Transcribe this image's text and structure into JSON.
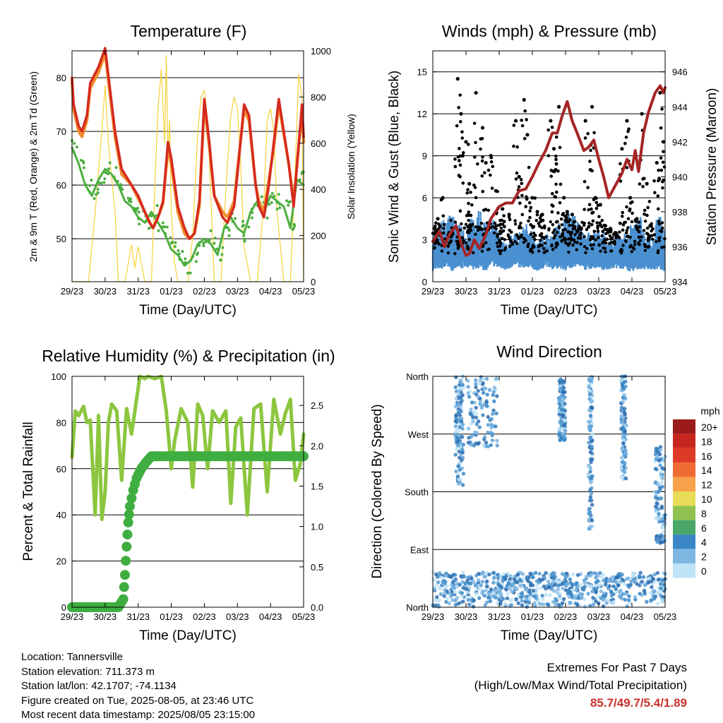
{
  "chart_data": [
    {
      "type": "line",
      "title": "Temperature (F)",
      "xlabel": "Time (Day/UTC)",
      "ylabel_left": "2m & 9m T (Red, Orange) & 2m Td (Green)",
      "ylabel_right": "Solar Insolation (Yellow)",
      "x_ticks": [
        "29/23",
        "30/23",
        "31/23",
        "01/23",
        "02/23",
        "03/23",
        "04/23",
        "05/23"
      ],
      "ylim_left": [
        42,
        85
      ],
      "y_ticks_left": [
        50,
        60,
        70,
        80
      ],
      "ylim_right": [
        0,
        1000
      ],
      "y_ticks_right": [
        0,
        200,
        400,
        600,
        800,
        1000
      ],
      "grid": true,
      "series": [
        {
          "color": "#d52a1f",
          "axis": "left",
          "x": [
            0,
            0.05,
            0.2,
            0.3,
            0.45,
            0.55,
            0.8,
            1.0,
            1.3,
            1.5,
            1.8,
            2.0,
            2.2,
            2.35,
            2.45,
            2.6,
            2.75,
            2.9,
            3.0,
            3.2,
            3.4,
            3.55,
            3.7,
            3.85,
            4.0,
            4.15,
            4.3,
            4.55,
            4.7,
            4.9,
            5.0,
            5.2,
            5.35,
            5.55,
            5.65,
            5.8,
            5.95,
            6.1,
            6.25,
            6.55,
            6.7,
            6.95,
            7.0
          ],
          "y": [
            80,
            75,
            71,
            70,
            73,
            79,
            82,
            85.5,
            70,
            63,
            60,
            58,
            55,
            53,
            52,
            54,
            57,
            68,
            65,
            56,
            52,
            50,
            51,
            57,
            76,
            68,
            58,
            54,
            53,
            56,
            62,
            75,
            73,
            60,
            56,
            54,
            60,
            68,
            76,
            64,
            56,
            75,
            69
          ]
        },
        {
          "color": "#f08a2a",
          "axis": "left",
          "x": [
            0,
            0.05,
            0.2,
            0.3,
            0.45,
            0.55,
            0.8,
            1.0,
            1.3,
            1.5,
            1.8,
            2.0,
            2.2,
            2.35,
            2.45,
            2.6,
            2.75,
            2.9,
            3.0,
            3.2,
            3.4,
            3.55,
            3.7,
            3.85,
            4.0,
            4.15,
            4.3,
            4.55,
            4.7,
            4.9,
            5.0,
            5.2,
            5.35,
            5.55,
            5.65,
            5.8,
            5.95,
            6.1,
            6.25,
            6.55,
            6.7,
            6.95,
            7.0
          ],
          "y": [
            79.5,
            74,
            70,
            69,
            72,
            78,
            81,
            84.5,
            69,
            62,
            60,
            57.5,
            55,
            53,
            52,
            54,
            56.5,
            67,
            64,
            55,
            51,
            50,
            51,
            56,
            75,
            67,
            58,
            55,
            54,
            57,
            63,
            74,
            72,
            60,
            57,
            55,
            61,
            67,
            75,
            64,
            57,
            74,
            68
          ]
        },
        {
          "color": "#4cae3f",
          "axis": "left",
          "x": [
            0,
            0.2,
            0.4,
            0.6,
            0.8,
            1.0,
            1.2,
            1.4,
            1.6,
            1.8,
            2.0,
            2.2,
            2.4,
            2.6,
            2.8,
            3.0,
            3.2,
            3.4,
            3.6,
            3.8,
            4.0,
            4.2,
            4.4,
            4.6,
            4.8,
            5.0,
            5.2,
            5.4,
            5.6,
            5.8,
            6.0,
            6.2,
            6.4,
            6.6,
            6.8,
            7.0
          ],
          "y": [
            67,
            64,
            60,
            58,
            61,
            63,
            62,
            60,
            57,
            56,
            54,
            53,
            55,
            53,
            51,
            48,
            47,
            45,
            46,
            49,
            50,
            49,
            47,
            52,
            54,
            52,
            51,
            55,
            57,
            55,
            58,
            57,
            56,
            52,
            61,
            60
          ]
        },
        {
          "color": "#f5d23a",
          "axis": "right",
          "x": [
            0,
            0.5,
            0.7,
            0.9,
            1.0,
            1.1,
            1.3,
            1.4,
            1.6,
            1.7,
            1.8,
            1.9,
            2.0,
            2.2,
            2.4,
            2.5,
            2.6,
            2.7,
            2.8,
            2.85,
            2.9,
            2.95,
            3.0,
            3.1,
            3.2,
            3.5,
            3.65,
            3.8,
            3.9,
            4.0,
            4.1,
            4.2,
            4.3,
            4.5,
            4.65,
            4.8,
            4.9,
            5.0,
            5.1,
            5.2,
            5.4,
            5.6,
            5.8,
            5.9,
            6.0,
            6.1,
            6.2,
            6.4,
            6.6,
            6.75,
            6.85,
            6.95,
            7.0
          ],
          "y": [
            0,
            0,
            300,
            650,
            850,
            600,
            300,
            0,
            0,
            80,
            160,
            60,
            150,
            0,
            0,
            400,
            750,
            920,
            600,
            980,
            500,
            700,
            300,
            80,
            0,
            0,
            200,
            650,
            800,
            830,
            700,
            350,
            0,
            0,
            400,
            720,
            800,
            750,
            500,
            150,
            0,
            0,
            350,
            700,
            750,
            650,
            300,
            0,
            0,
            500,
            900,
            800,
            0
          ]
        }
      ]
    },
    {
      "type": "scatter",
      "title": "Winds (mph) & Pressure (mb)",
      "xlabel": "Time (Day/UTC)",
      "ylabel_left": "Sonic Wind & Gust (Blue, Black)",
      "ylabel_right": "Station Pressure (Maroon)",
      "x_ticks": [
        "29/23",
        "30/23",
        "31/23",
        "01/23",
        "02/23",
        "03/23",
        "04/23",
        "05/23"
      ],
      "ylim_left": [
        0,
        16.5
      ],
      "y_ticks_left": [
        0,
        3,
        6,
        9,
        12,
        15
      ],
      "ylim_right": [
        934,
        947.2
      ],
      "y_ticks_right": [
        934,
        936,
        938,
        940,
        942,
        944,
        946
      ],
      "grid": true,
      "series": [
        {
          "kind": "band",
          "color": "#4a90d0",
          "x": [
            0,
            0.2,
            0.4,
            0.6,
            0.8,
            1.0,
            1.2,
            1.4,
            1.6,
            1.8,
            2.0,
            2.2,
            2.4,
            2.6,
            2.8,
            3.0,
            3.2,
            3.4,
            3.6,
            3.8,
            4.0,
            4.2,
            4.4,
            4.6,
            4.8,
            5.0,
            5.2,
            5.4,
            5.6,
            5.8,
            6.0,
            6.2,
            6.4,
            6.6,
            6.8,
            7.0
          ],
          "low": [
            1,
            1.2,
            1.5,
            1,
            1.2,
            1.5,
            1.2,
            1.4,
            1,
            1.6,
            1.3,
            1.1,
            1.5,
            1.4,
            1.2,
            1.3,
            1,
            1.6,
            1.2,
            1.3,
            1.1,
            1.4,
            1.5,
            1.2,
            1.3,
            1.4,
            1.1,
            1.3,
            1.4,
            1.2,
            1,
            1.3,
            1.2,
            1.1,
            1.3,
            1
          ],
          "high": [
            3,
            3.5,
            4,
            4.5,
            3.5,
            3,
            4,
            4.5,
            3.5,
            4,
            3,
            2.5,
            3,
            3,
            3.5,
            3,
            2.5,
            3,
            3,
            3.5,
            4,
            4.5,
            3.5,
            3,
            3,
            3.5,
            3,
            2.5,
            3,
            3,
            3.5,
            4.5,
            3,
            2.5,
            4.5,
            3
          ]
        },
        {
          "kind": "points",
          "color": "#000000",
          "x": [
            0.05,
            0.15,
            0.3,
            0.5,
            0.75,
            0.85,
            0.9,
            1.0,
            1.1,
            1.3,
            1.5,
            1.6,
            1.75,
            1.9,
            2.1,
            2.3,
            2.5,
            2.6,
            2.75,
            2.85,
            3.0,
            3.15,
            3.3,
            3.55,
            3.65,
            3.7,
            3.8,
            3.95,
            4.05,
            4.2,
            4.4,
            4.6,
            4.75,
            4.8,
            4.9,
            5.05,
            5.2,
            5.35,
            5.5,
            5.7,
            5.85,
            5.95,
            6.15,
            6.3,
            6.45,
            6.55,
            6.75,
            6.85,
            6.95
          ],
          "y": [
            3.8,
            4.5,
            6,
            3.5,
            14.5,
            12,
            9,
            10,
            7,
            13.5,
            11,
            8.5,
            9,
            6.5,
            5.2,
            4.8,
            11.5,
            7.5,
            13,
            10.5,
            6,
            5,
            4.8,
            11.5,
            9.5,
            8,
            12.5,
            6,
            5,
            4.8,
            3.8,
            11.5,
            8,
            12.5,
            6,
            5.5,
            4,
            3.8,
            3.5,
            9.5,
            11.5,
            6,
            4.5,
            12,
            7,
            4,
            8.5,
            13.5,
            10
          ]
        },
        {
          "kind": "line",
          "color": "#a52525",
          "axis": "right",
          "x": [
            0,
            0.2,
            0.35,
            0.5,
            0.7,
            0.85,
            1.0,
            1.1,
            1.25,
            1.4,
            1.6,
            1.75,
            2.0,
            2.2,
            2.4,
            2.6,
            2.8,
            3.0,
            3.2,
            3.4,
            3.6,
            3.75,
            3.9,
            4.05,
            4.2,
            4.35,
            4.55,
            4.7,
            4.85,
            5.0,
            5.15,
            5.3,
            5.5,
            5.7,
            5.85,
            6.0,
            6.1,
            6.2,
            6.35,
            6.5,
            6.7,
            6.85,
            6.95,
            7.0
          ],
          "y": [
            936.3,
            936.9,
            936,
            936.7,
            937.2,
            936.2,
            935.5,
            935.6,
            936.4,
            935.9,
            936.7,
            937.6,
            938.3,
            938.5,
            938.5,
            939.2,
            939.3,
            940.0,
            940.8,
            941.5,
            942.5,
            942.5,
            943.5,
            944.3,
            943.2,
            942.5,
            941.5,
            941.7,
            942.1,
            941.0,
            940.0,
            938.8,
            939.5,
            940.2,
            941.0,
            940.4,
            941.5,
            940.3,
            942.5,
            943.7,
            944.8,
            945.2,
            944.8,
            945.1
          ]
        }
      ]
    },
    {
      "type": "line",
      "title": "Relative Humidity (%) & Precipitation (in)",
      "xlabel": "Time (Day/UTC)",
      "ylabel_left": "Percent & Total Rainfall",
      "x_ticks": [
        "29/23",
        "30/23",
        "31/23",
        "01/23",
        "02/23",
        "03/23",
        "04/23",
        "05/23"
      ],
      "ylim_left": [
        0,
        100
      ],
      "y_ticks_left": [
        0,
        20,
        40,
        60,
        80,
        100
      ],
      "ylim_right": [
        0,
        2.86
      ],
      "y_ticks_right": [
        0.0,
        0.5,
        1.0,
        1.5,
        2.0,
        2.5
      ],
      "grid": true,
      "series": [
        {
          "color": "#8cc63f",
          "axis": "left",
          "x": [
            0,
            0.1,
            0.2,
            0.35,
            0.45,
            0.55,
            0.7,
            0.8,
            0.9,
            1.0,
            1.1,
            1.2,
            1.35,
            1.5,
            1.65,
            1.8,
            1.95,
            2.05,
            2.2,
            2.3,
            2.5,
            2.7,
            2.85,
            3.0,
            3.1,
            3.3,
            3.5,
            3.65,
            3.8,
            3.95,
            4.1,
            4.25,
            4.45,
            4.65,
            4.8,
            4.95,
            5.1,
            5.3,
            5.5,
            5.7,
            5.9,
            6.1,
            6.3,
            6.45,
            6.6,
            6.75,
            6.9,
            7.0
          ],
          "y": [
            65,
            85,
            83,
            87,
            80,
            81,
            40,
            83,
            38,
            50,
            80,
            88,
            85,
            55,
            86,
            75,
            90,
            100,
            99,
            100,
            99,
            100,
            85,
            60,
            72,
            86,
            80,
            52,
            88,
            83,
            60,
            85,
            80,
            85,
            45,
            78,
            82,
            40,
            86,
            88,
            50,
            90,
            75,
            84,
            90,
            55,
            62,
            75
          ]
        },
        {
          "color": "#3fae40",
          "axis": "right",
          "x": [
            0,
            1.4,
            1.55,
            1.6,
            1.65,
            1.7,
            1.75,
            1.85,
            1.95,
            2.1,
            2.25,
            2.4,
            7.0
          ],
          "y": [
            0,
            0,
            0.1,
            0.4,
            0.75,
            1.05,
            1.25,
            1.45,
            1.6,
            1.72,
            1.8,
            1.87,
            1.87
          ]
        }
      ]
    },
    {
      "type": "scatter",
      "title": "Wind Direction",
      "xlabel": "Time (Day/UTC)",
      "ylabel_left": "Direction (Colored By Speed)",
      "x_ticks": [
        "29/23",
        "30/23",
        "31/23",
        "01/23",
        "02/23",
        "03/23",
        "04/23",
        "05/23"
      ],
      "y_ticks": [
        "North",
        "East",
        "South",
        "West",
        "North"
      ],
      "ylim": [
        0,
        360
      ],
      "grid": true,
      "legend": {
        "title": "mph",
        "labels": [
          "20+",
          "18",
          "16",
          "14",
          "12",
          "10",
          "8",
          "6",
          "4",
          "2",
          "0"
        ],
        "colors": [
          "#9b1b1b",
          "#c7261f",
          "#de3a28",
          "#ef6a30",
          "#f7a24a",
          "#e9dc58",
          "#8fc24f",
          "#4aa76a",
          "#3a86c4",
          "#7fb7e3",
          "#bfe3f6"
        ]
      },
      "clusters": [
        {
          "x": 0.8,
          "w": 0.25,
          "d0": 190,
          "d1": 360
        },
        {
          "x": 1.5,
          "w": 0.9,
          "d0": 250,
          "d1": 360
        },
        {
          "x": 3.9,
          "w": 0.2,
          "d0": 260,
          "d1": 360
        },
        {
          "x": 4.75,
          "w": 0.12,
          "d0": 120,
          "d1": 360
        },
        {
          "x": 5.75,
          "w": 0.15,
          "d0": 200,
          "d1": 360
        },
        {
          "x": 6.85,
          "w": 0.3,
          "d0": 100,
          "d1": 250
        }
      ],
      "low_band": [
        0,
        90
      ]
    }
  ],
  "info": {
    "location": "Location: Tannersville",
    "elevation": "Station elevation: 711.373 m",
    "latlon": "Station lat/lon: 42.1707; -74.1134",
    "created": "Figure created on Tue, 2025-08-05, at 23:46 UTC",
    "recent": "Most recent data timestamp: 2025/08/05 23:15:00"
  },
  "extremes": {
    "line1": "Extremes For Past 7 Days",
    "line2": "(High/Low/Max Wind/Total Precipitation)",
    "values": "85.7/49.7/5.4/1.89"
  }
}
